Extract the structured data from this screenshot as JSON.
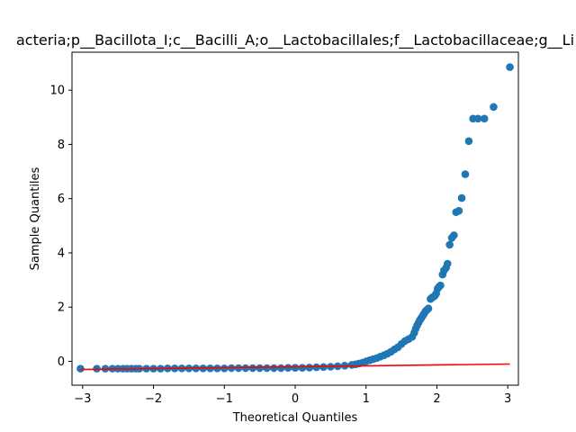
{
  "chart_data": {
    "type": "scatter",
    "title": "acteria;p__Bacillota_I;c__Bacilli_A;o__Lactobacillales;f__Lactobacillaceae;g__Li",
    "xlabel": "Theoretical Quantiles",
    "ylabel": "Sample Quantiles",
    "xlim": [
      -3.15,
      3.15
    ],
    "ylim": [
      -0.88,
      11.4
    ],
    "xticks": [
      -3,
      -2,
      -1,
      0,
      1,
      2,
      3
    ],
    "xtick_labels": [
      "−3",
      "−2",
      "−1",
      "0",
      "1",
      "2",
      "3"
    ],
    "yticks": [
      0,
      2,
      4,
      6,
      8,
      10
    ],
    "ytick_labels": [
      "0",
      "2",
      "4",
      "6",
      "8",
      "10"
    ],
    "grid": false,
    "legend": "none",
    "marker_color": "#1f77b4",
    "line_color": "#ff0000",
    "reference_line": {
      "x": [
        -3.03,
        3.03
      ],
      "y": [
        -0.3,
        -0.1
      ]
    },
    "series": [
      {
        "x": [
          -3.03,
          -2.8,
          -2.68,
          -2.58,
          -2.5,
          -2.43,
          -2.37,
          -2.31,
          -2.25,
          -2.2,
          -2.1,
          -2.0,
          -1.9,
          -1.8,
          -1.7,
          -1.6,
          -1.5,
          -1.4,
          -1.3,
          -1.2,
          -1.1,
          -1.0,
          -0.9,
          -0.8,
          -0.7,
          -0.6,
          -0.5,
          -0.4,
          -0.3,
          -0.2,
          -0.1,
          0.0,
          0.1,
          0.2,
          0.3,
          0.4,
          0.5,
          0.6,
          0.7,
          0.8,
          0.85,
          0.9,
          0.95,
          1.0,
          1.05,
          1.1,
          1.15,
          1.2,
          1.25,
          1.3,
          1.35,
          1.4,
          1.45,
          1.5,
          1.55,
          1.6,
          1.65,
          1.68,
          1.7,
          1.72,
          1.74,
          1.76,
          1.78,
          1.8,
          1.82,
          1.84,
          1.86,
          1.88,
          1.91,
          1.93,
          1.95,
          1.97,
          1.99,
          2.01,
          2.03,
          2.05,
          2.08,
          2.1,
          2.13,
          2.15,
          2.18,
          2.21,
          2.24,
          2.27,
          2.31,
          2.35,
          2.4,
          2.45,
          2.51,
          2.58,
          2.67,
          2.8,
          3.03
        ],
        "y": [
          -0.27,
          -0.27,
          -0.27,
          -0.27,
          -0.27,
          -0.27,
          -0.27,
          -0.27,
          -0.27,
          -0.27,
          -0.27,
          -0.27,
          -0.27,
          -0.26,
          -0.26,
          -0.26,
          -0.26,
          -0.26,
          -0.26,
          -0.26,
          -0.26,
          -0.26,
          -0.25,
          -0.25,
          -0.25,
          -0.25,
          -0.25,
          -0.25,
          -0.25,
          -0.25,
          -0.24,
          -0.24,
          -0.24,
          -0.23,
          -0.22,
          -0.21,
          -0.2,
          -0.18,
          -0.16,
          -0.13,
          -0.11,
          -0.08,
          -0.05,
          0.0,
          0.04,
          0.08,
          0.12,
          0.17,
          0.22,
          0.28,
          0.35,
          0.44,
          0.52,
          0.64,
          0.75,
          0.82,
          0.9,
          1.05,
          1.2,
          1.32,
          1.42,
          1.52,
          1.6,
          1.68,
          1.76,
          1.85,
          1.9,
          1.95,
          2.3,
          2.35,
          2.38,
          2.42,
          2.5,
          2.68,
          2.75,
          2.8,
          3.2,
          3.35,
          3.45,
          3.6,
          4.3,
          4.55,
          4.65,
          5.5,
          5.55,
          6.02,
          6.9,
          8.12,
          8.95,
          8.95,
          8.95,
          9.38,
          10.85
        ]
      }
    ]
  }
}
